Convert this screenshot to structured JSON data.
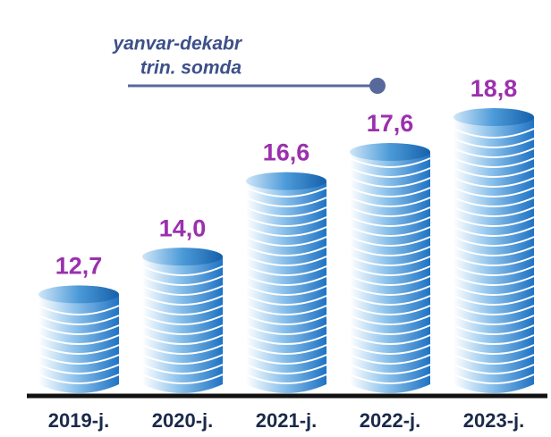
{
  "chart_data": {
    "type": "coin-stack",
    "annotation": [
      "yanvar-dekabr",
      "trin. somda"
    ],
    "categories": [
      "2019-j.",
      "2020-j.",
      "2021-j.",
      "2022-j.",
      "2023-j."
    ],
    "values": [
      12.7,
      14.0,
      16.6,
      17.6,
      18.8
    ],
    "value_labels": [
      "12,7",
      "14,0",
      "16,6",
      "17,6",
      "18,8"
    ],
    "color": "#1f73c4",
    "label_color": "#9b30ae",
    "ylim": [
      9.3,
      20
    ]
  }
}
